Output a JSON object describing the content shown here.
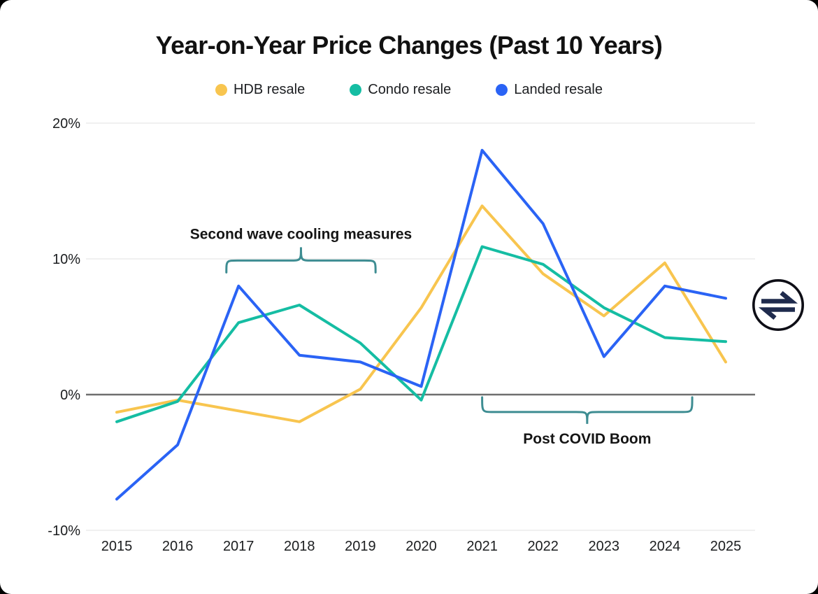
{
  "page": {
    "background_color": "#000000",
    "card_background_color": "#ffffff"
  },
  "chart_data": {
    "type": "line",
    "title": "Year-on-Year Price Changes (Past 10 Years)",
    "xlabel": "",
    "ylabel": "",
    "x": [
      2015,
      2016,
      2017,
      2018,
      2019,
      2020,
      2021,
      2022,
      2023,
      2024,
      2025
    ],
    "series": [
      {
        "name": "HDB resale",
        "color": "#F8C54F",
        "values": [
          -1.3,
          -0.4,
          -1.2,
          -2.0,
          0.4,
          6.4,
          13.9,
          8.9,
          5.8,
          9.7,
          2.4
        ]
      },
      {
        "name": "Condo resale",
        "color": "#15BDA3",
        "values": [
          -2.0,
          -0.5,
          5.3,
          6.6,
          3.8,
          -0.4,
          10.9,
          9.6,
          6.4,
          4.2,
          3.9
        ]
      },
      {
        "name": "Landed resale",
        "color": "#2A63F5",
        "values": [
          -7.7,
          -3.7,
          8.0,
          2.9,
          2.4,
          0.6,
          18.0,
          12.6,
          2.8,
          8.0,
          7.1
        ]
      }
    ],
    "ylim": [
      -10,
      20
    ],
    "yticks": [
      {
        "value": 20,
        "label": "20%"
      },
      {
        "value": 10,
        "label": "10%"
      },
      {
        "value": 0,
        "label": "0%"
      },
      {
        "value": -10,
        "label": "-10%"
      }
    ],
    "grid": "horizontal-light",
    "grid_color": "#F0F0F0",
    "zero_line_color": "#6F6F6F",
    "tick_color": "#1B1D1F",
    "legend_position": "top-center",
    "annotations": [
      {
        "text": "Second wave cooling measures",
        "type": "brace-over",
        "x_from": 2016.8,
        "x_to": 2019.25,
        "at_value": 9.0,
        "brace_color": "#3E8D92",
        "text_color": "#151515"
      },
      {
        "text": "Post COVID Boom",
        "type": "brace-under",
        "x_from": 2021.0,
        "x_to": 2024.45,
        "at_value": -0.2,
        "brace_color": "#3E8D92",
        "text_color": "#151515"
      }
    ]
  },
  "brand_logo": {
    "icon": "equilibrium-swap-arrows-in-circle",
    "circle_color": "#0E0E16",
    "arrow_color": "#1F2B4D"
  }
}
